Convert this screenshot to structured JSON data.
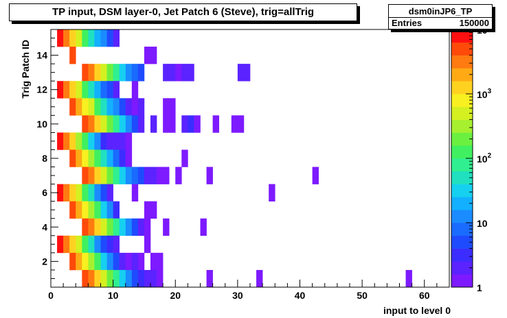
{
  "title": "TP input, DSM layer-0, Jet Patch 6 (Steve), trig=allTrig",
  "stats": {
    "name": "dsm0inJP6_TP",
    "entries_label": "Entries",
    "entries_value": "150000"
  },
  "chart_data": {
    "type": "heatmap",
    "xlabel": "input to level 0",
    "ylabel": "Trig Patch ID",
    "xlim": [
      0,
      64
    ],
    "ylim": [
      0.5,
      15.5
    ],
    "x_ticks": [
      0,
      10,
      20,
      30,
      40,
      50,
      60
    ],
    "y_ticks": [
      2,
      4,
      6,
      8,
      10,
      12,
      14
    ],
    "z_scale": "log",
    "z_ticks": [
      {
        "value": 1,
        "label": "1"
      },
      {
        "value": 10,
        "label": "10"
      },
      {
        "value": 100,
        "label": "10",
        "exp": "2"
      },
      {
        "value": 1000,
        "label": "10",
        "exp": "3"
      },
      {
        "value": 10000,
        "label": "10",
        "exp": "4"
      }
    ],
    "cells": [
      {
        "y": 15,
        "start": 1,
        "counts": [
          7000,
          3500,
          1200,
          500,
          150,
          60,
          25,
          10,
          5,
          2
        ]
      },
      {
        "y": 14,
        "start": 3,
        "counts": [
          4000,
          0,
          0,
          0,
          0,
          0,
          0,
          0,
          0,
          0,
          0,
          0,
          1,
          1
        ]
      },
      {
        "y": 13,
        "start": 5,
        "counts": [
          6000,
          3000,
          1200,
          500,
          200,
          80,
          30,
          15,
          8,
          4,
          0,
          0,
          0,
          2,
          2,
          1,
          2,
          2,
          0,
          0,
          0,
          0,
          0,
          0,
          0,
          2,
          2
        ]
      },
      {
        "y": 12,
        "start": 1,
        "counts": [
          7000,
          3500,
          1200,
          400,
          150,
          60,
          20,
          8,
          4,
          2,
          0,
          0,
          1
        ]
      },
      {
        "y": 11,
        "start": 3,
        "counts": [
          5000,
          2500,
          900,
          400,
          150,
          60,
          25,
          10,
          5,
          2,
          1,
          2,
          0,
          0,
          0,
          1,
          1
        ]
      },
      {
        "y": 10,
        "start": 5,
        "counts": [
          6000,
          3000,
          1300,
          500,
          200,
          80,
          30,
          15,
          5,
          2,
          0,
          2,
          0,
          1,
          1,
          0,
          2,
          3,
          1,
          0,
          0,
          1,
          0,
          0,
          1,
          1
        ]
      },
      {
        "y": 9,
        "start": 1,
        "counts": [
          6500,
          3000,
          1000,
          300,
          100,
          30,
          10,
          3,
          2,
          2,
          2,
          1
        ]
      },
      {
        "y": 8,
        "start": 3,
        "counts": [
          5000,
          2500,
          900,
          300,
          120,
          50,
          20,
          8,
          3,
          1,
          0,
          0,
          0,
          0,
          0,
          0,
          0,
          0,
          1
        ]
      },
      {
        "y": 7,
        "start": 5,
        "counts": [
          6000,
          3000,
          1200,
          500,
          200,
          80,
          30,
          15,
          8,
          4,
          2,
          2,
          1,
          1,
          0,
          1,
          0,
          0,
          0,
          0,
          1,
          0,
          0,
          0,
          0,
          0,
          0,
          0,
          0,
          0,
          0,
          0,
          0,
          0,
          0,
          0,
          0,
          1
        ]
      },
      {
        "y": 6,
        "start": 1,
        "counts": [
          7000,
          3500,
          1200,
          400,
          120,
          40,
          15,
          5,
          2,
          0,
          0,
          0,
          1,
          0,
          0,
          0,
          0,
          0,
          0,
          0,
          0,
          0,
          0,
          0,
          0,
          0,
          0,
          0,
          0,
          0,
          0,
          0,
          0,
          0,
          1
        ]
      },
      {
        "y": 5,
        "start": 3,
        "counts": [
          5000,
          2500,
          900,
          300,
          100,
          30,
          10,
          3,
          0,
          0,
          0,
          0,
          1,
          1
        ]
      },
      {
        "y": 4,
        "start": 5,
        "counts": [
          6000,
          3000,
          1200,
          500,
          200,
          80,
          30,
          12,
          5,
          2,
          1,
          0,
          0,
          1,
          0,
          0,
          0,
          0,
          0,
          1
        ]
      },
      {
        "y": 3,
        "start": 1,
        "counts": [
          7000,
          3500,
          1200,
          400,
          120,
          40,
          15,
          5,
          3,
          2,
          0,
          0,
          0,
          0,
          1
        ]
      },
      {
        "y": 2,
        "start": 3,
        "counts": [
          5000,
          2500,
          900,
          300,
          100,
          30,
          10,
          4,
          2,
          1,
          2,
          1,
          0,
          1,
          1
        ]
      },
      {
        "y": 1,
        "start": 5,
        "counts": [
          6000,
          3000,
          1200,
          500,
          200,
          80,
          30,
          12,
          5,
          3,
          2,
          2,
          1,
          0,
          0,
          0,
          0,
          0,
          0,
          0,
          1,
          0,
          0,
          0,
          0,
          0,
          0,
          0,
          1,
          0,
          0,
          0,
          0,
          0,
          0,
          0,
          0,
          0,
          0,
          0,
          0,
          0,
          0,
          0,
          0,
          0,
          0,
          0,
          0,
          0,
          0,
          0,
          1
        ]
      }
    ]
  }
}
